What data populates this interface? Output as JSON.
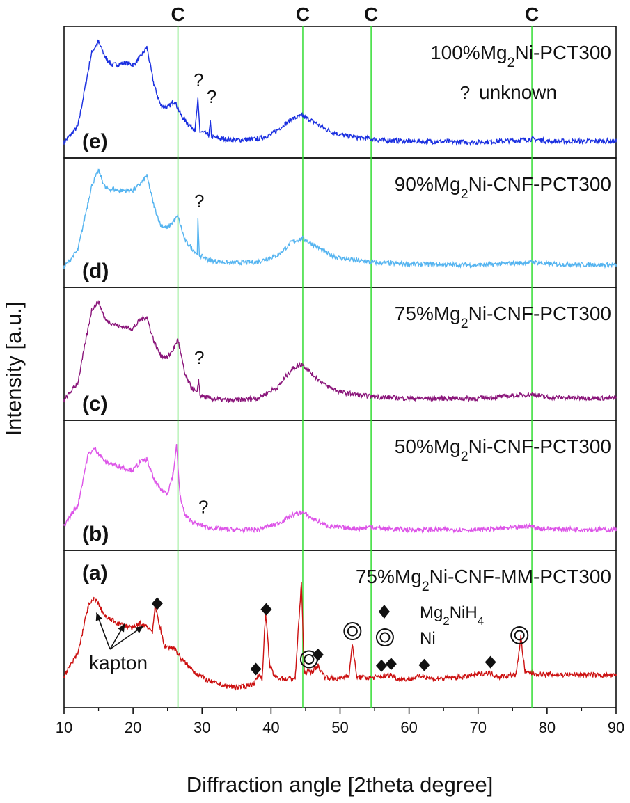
{
  "chart_data": {
    "type": "line",
    "title": "",
    "xlabel": "Diffraction angle [2theta degree]",
    "ylabel": "Intensity [a.u.]",
    "xlim": [
      10,
      90
    ],
    "xticks": [
      10,
      20,
      30,
      40,
      50,
      60,
      70,
      80,
      90
    ],
    "grid": false,
    "reference_lines": {
      "label": "C",
      "color": "#33dd33",
      "x": [
        26.5,
        44.6,
        54.5,
        77.8
      ]
    },
    "series": [
      {
        "letter": "(e)",
        "name_main": "100%Mg",
        "name_sub": "2",
        "name_rest": "Ni-PCT300",
        "color": "#1a2fe0",
        "points": [
          [
            10,
            0.05
          ],
          [
            12,
            0.2
          ],
          [
            14,
            0.9
          ],
          [
            15,
            1.0
          ],
          [
            16,
            0.85
          ],
          [
            17,
            0.78
          ],
          [
            19,
            0.8
          ],
          [
            20,
            0.78
          ],
          [
            21,
            0.85
          ],
          [
            22,
            0.95
          ],
          [
            23,
            0.6
          ],
          [
            24,
            0.4
          ],
          [
            25,
            0.38
          ],
          [
            26,
            0.44
          ],
          [
            27,
            0.3
          ],
          [
            28,
            0.22
          ],
          [
            29,
            0.17
          ],
          [
            29.4,
            0.45
          ],
          [
            29.7,
            0.15
          ],
          [
            31,
            0.12
          ],
          [
            31.2,
            0.24
          ],
          [
            31.4,
            0.1
          ],
          [
            33,
            0.08
          ],
          [
            35,
            0.07
          ],
          [
            38,
            0.08
          ],
          [
            40,
            0.12
          ],
          [
            42,
            0.22
          ],
          [
            43,
            0.27
          ],
          [
            44.5,
            0.3
          ],
          [
            46,
            0.25
          ],
          [
            48,
            0.17
          ],
          [
            50,
            0.12
          ],
          [
            53,
            0.09
          ],
          [
            56,
            0.07
          ],
          [
            60,
            0.06
          ],
          [
            70,
            0.05
          ],
          [
            76,
            0.07
          ],
          [
            78,
            0.08
          ],
          [
            80,
            0.06
          ],
          [
            90,
            0.06
          ]
        ],
        "question_marks": [
          [
            29.5,
            0.58
          ],
          [
            31.4,
            0.42
          ]
        ]
      },
      {
        "letter": "(d)",
        "name_main": "90%Mg",
        "name_sub": "2",
        "name_rest": "Ni-CNF-PCT300",
        "color": "#55b4f0",
        "points": [
          [
            10,
            0.03
          ],
          [
            12,
            0.2
          ],
          [
            14,
            0.85
          ],
          [
            15,
            1.0
          ],
          [
            16,
            0.82
          ],
          [
            18,
            0.8
          ],
          [
            20,
            0.8
          ],
          [
            21,
            0.86
          ],
          [
            22,
            0.95
          ],
          [
            23,
            0.65
          ],
          [
            24,
            0.45
          ],
          [
            25,
            0.42
          ],
          [
            26,
            0.5
          ],
          [
            26.5,
            0.54
          ],
          [
            27.5,
            0.3
          ],
          [
            28.5,
            0.22
          ],
          [
            29.3,
            0.16
          ],
          [
            29.4,
            0.5
          ],
          [
            29.6,
            0.15
          ],
          [
            31,
            0.1
          ],
          [
            34,
            0.07
          ],
          [
            38,
            0.08
          ],
          [
            41,
            0.15
          ],
          [
            43,
            0.28
          ],
          [
            44.5,
            0.32
          ],
          [
            46,
            0.26
          ],
          [
            48,
            0.17
          ],
          [
            50,
            0.12
          ],
          [
            53,
            0.09
          ],
          [
            56,
            0.07
          ],
          [
            60,
            0.06
          ],
          [
            70,
            0.05
          ],
          [
            76,
            0.07
          ],
          [
            78,
            0.08
          ],
          [
            80,
            0.06
          ],
          [
            90,
            0.05
          ]
        ],
        "question_marks": [
          [
            29.6,
            0.63
          ]
        ]
      },
      {
        "letter": "(c)",
        "name_main": "75%Mg",
        "name_sub": "2",
        "name_rest": "Ni-CNF-PCT300",
        "color": "#8a157a",
        "points": [
          [
            10,
            0.05
          ],
          [
            12,
            0.22
          ],
          [
            14,
            0.92
          ],
          [
            15,
            1.0
          ],
          [
            16,
            0.82
          ],
          [
            18,
            0.76
          ],
          [
            20,
            0.74
          ],
          [
            21,
            0.82
          ],
          [
            22,
            0.85
          ],
          [
            23,
            0.62
          ],
          [
            24,
            0.48
          ],
          [
            25,
            0.46
          ],
          [
            26,
            0.56
          ],
          [
            26.5,
            0.64
          ],
          [
            27.5,
            0.3
          ],
          [
            28.5,
            0.17
          ],
          [
            29.3,
            0.12
          ],
          [
            29.5,
            0.26
          ],
          [
            29.7,
            0.1
          ],
          [
            31,
            0.07
          ],
          [
            34,
            0.05
          ],
          [
            38,
            0.07
          ],
          [
            41,
            0.18
          ],
          [
            43,
            0.35
          ],
          [
            44.5,
            0.4
          ],
          [
            46,
            0.3
          ],
          [
            48,
            0.19
          ],
          [
            50,
            0.13
          ],
          [
            53,
            0.1
          ],
          [
            56,
            0.08
          ],
          [
            60,
            0.07
          ],
          [
            70,
            0.07
          ],
          [
            76,
            0.1
          ],
          [
            78,
            0.11
          ],
          [
            80,
            0.08
          ],
          [
            90,
            0.07
          ]
        ],
        "question_marks": [
          [
            29.6,
            0.4
          ]
        ]
      },
      {
        "letter": "(b)",
        "name_main": "50%Mg",
        "name_sub": "2",
        "name_rest": "Ni-CNF-PCT300",
        "color": "#dd55e8",
        "points": [
          [
            10,
            0.1
          ],
          [
            12,
            0.3
          ],
          [
            13.5,
            0.8
          ],
          [
            14.5,
            0.85
          ],
          [
            16,
            0.72
          ],
          [
            18,
            0.68
          ],
          [
            20,
            0.64
          ],
          [
            21,
            0.72
          ],
          [
            22,
            0.75
          ],
          [
            23,
            0.55
          ],
          [
            24,
            0.45
          ],
          [
            25,
            0.42
          ],
          [
            25.8,
            0.6
          ],
          [
            26.3,
            0.88
          ],
          [
            26.8,
            0.4
          ],
          [
            27.5,
            0.2
          ],
          [
            29,
            0.12
          ],
          [
            31,
            0.08
          ],
          [
            34,
            0.06
          ],
          [
            38,
            0.06
          ],
          [
            41,
            0.12
          ],
          [
            43,
            0.2
          ],
          [
            44.5,
            0.23
          ],
          [
            46,
            0.17
          ],
          [
            48,
            0.1
          ],
          [
            50,
            0.08
          ],
          [
            53,
            0.07
          ],
          [
            54.5,
            0.09
          ],
          [
            56,
            0.07
          ],
          [
            60,
            0.06
          ],
          [
            70,
            0.06
          ],
          [
            76,
            0.08
          ],
          [
            77.5,
            0.1
          ],
          [
            79,
            0.07
          ],
          [
            90,
            0.06
          ]
        ],
        "question_marks": [
          [
            30.2,
            0.22
          ]
        ]
      },
      {
        "letter": "(a)",
        "name_main": "75%Mg",
        "name_sub": "2",
        "name_rest": "Ni-CNF-MM-PCT300",
        "color": "#cc1111",
        "points": [
          [
            10,
            0.15
          ],
          [
            12,
            0.35
          ],
          [
            13.5,
            0.78
          ],
          [
            14.5,
            0.85
          ],
          [
            16,
            0.68
          ],
          [
            18,
            0.62
          ],
          [
            20,
            0.58
          ],
          [
            21,
            0.62
          ],
          [
            22,
            0.6
          ],
          [
            22.8,
            0.55
          ],
          [
            23.2,
            0.78
          ],
          [
            23.7,
            0.65
          ],
          [
            24.5,
            0.42
          ],
          [
            26,
            0.4
          ],
          [
            27,
            0.3
          ],
          [
            29,
            0.18
          ],
          [
            31,
            0.1
          ],
          [
            34,
            0.05
          ],
          [
            36,
            0.05
          ],
          [
            37.5,
            0.08
          ],
          [
            38.3,
            0.16
          ],
          [
            38.7,
            0.12
          ],
          [
            39.2,
            0.73
          ],
          [
            39.8,
            0.25
          ],
          [
            40.5,
            0.14
          ],
          [
            42,
            0.12
          ],
          [
            43.5,
            0.13
          ],
          [
            44.4,
            1.0
          ],
          [
            44.8,
            0.18
          ],
          [
            46,
            0.19
          ],
          [
            46.8,
            0.24
          ],
          [
            47.8,
            0.14
          ],
          [
            50,
            0.12
          ],
          [
            51.3,
            0.16
          ],
          [
            51.8,
            0.44
          ],
          [
            52.4,
            0.14
          ],
          [
            54,
            0.13
          ],
          [
            56,
            0.14
          ],
          [
            57.3,
            0.16
          ],
          [
            58.5,
            0.12
          ],
          [
            60,
            0.12
          ],
          [
            62,
            0.15
          ],
          [
            63.5,
            0.12
          ],
          [
            68,
            0.14
          ],
          [
            71.5,
            0.18
          ],
          [
            73,
            0.14
          ],
          [
            75.5,
            0.16
          ],
          [
            76.2,
            0.5
          ],
          [
            76.8,
            0.18
          ],
          [
            80,
            0.16
          ],
          [
            85,
            0.16
          ],
          [
            90,
            0.15
          ]
        ],
        "question_marks": []
      }
    ],
    "markers_a": {
      "diamond_x": [
        23.5,
        37.8,
        39.3,
        46.8,
        56.0,
        57.4,
        62.2,
        71.8
      ],
      "ni_x": [
        45.5,
        51.8,
        76.0
      ]
    },
    "annotations": {
      "kapton": "kapton",
      "unknown_glyph": "?",
      "unknown_text": "unknown",
      "mg2nih4_main": "Mg",
      "mg2nih4_sub1": "2",
      "mg2nih4_mid": "NiH",
      "mg2nih4_sub2": "4",
      "ni": "Ni"
    }
  }
}
